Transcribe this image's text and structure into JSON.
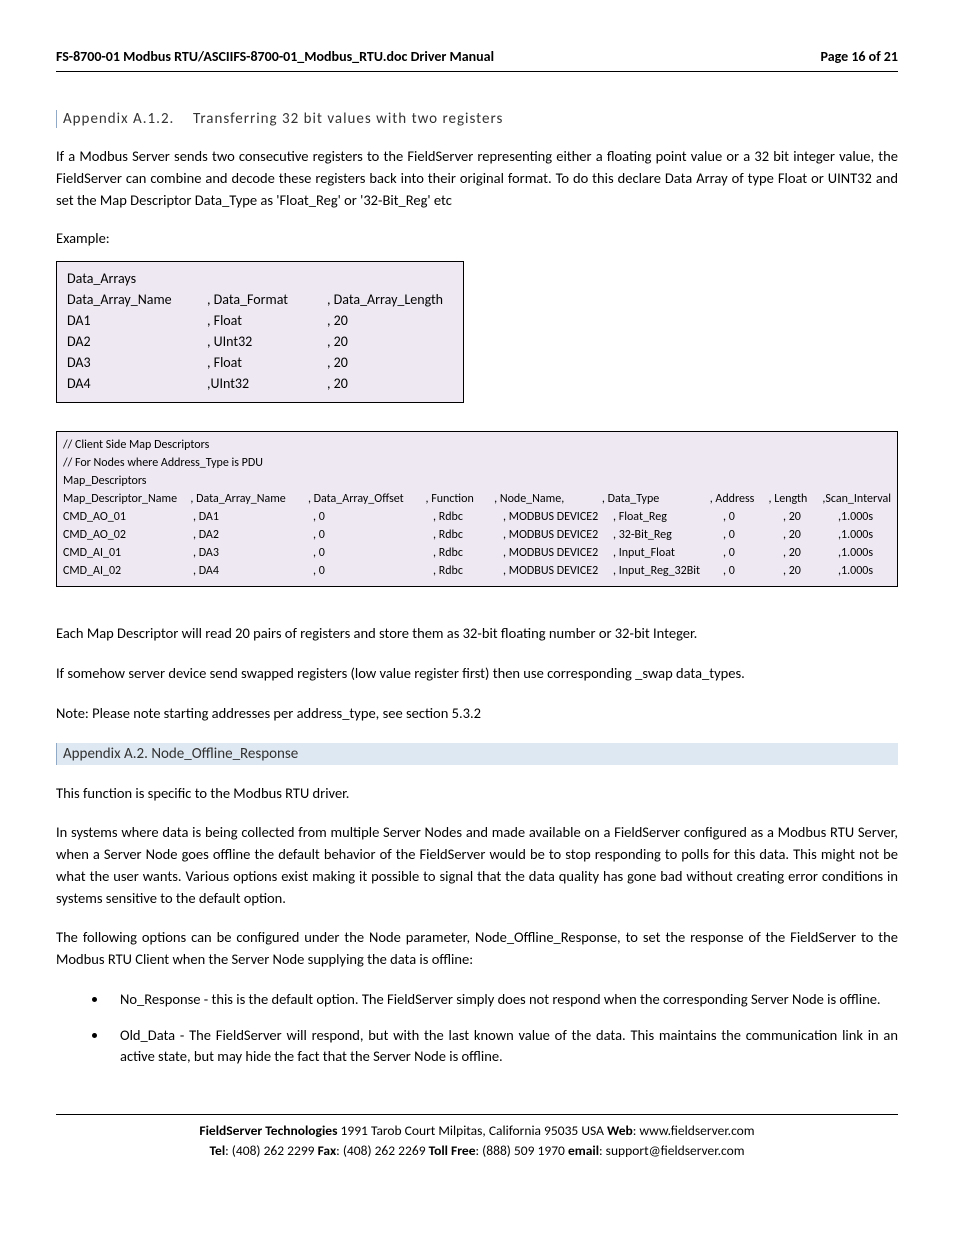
{
  "header": {
    "title": "FS-8700-01 Modbus RTU/ASCIIFS-8700-01_Modbus_RTU.doc Driver Manual",
    "page": "Page 16 of 21"
  },
  "sectA12": {
    "num": "Appendix A.1.2.",
    "title": "Transferring 32 bit values with two registers"
  },
  "para1": "If a Modbus Server sends two consecutive registers to the FieldServer representing either a floating point value or a 32 bit integer value, the FieldServer can combine and decode these registers back into their original format. To do this declare Data Array of type Float or UINT32 and set the Map Descriptor Data_Type  as 'Float_Reg' or '32-Bit_Reg' etc",
  "exampleLabel": "Example:",
  "dataArrays": {
    "title": "Data_Arrays",
    "headers": [
      "Data_Array_Name",
      ", Data_Format",
      ", Data_Array_Length"
    ],
    "rows": [
      [
        "DA1",
        ", Float",
        ", 20"
      ],
      [
        "DA2",
        ", UInt32",
        ", 20"
      ],
      [
        "DA3",
        ", Float",
        ", 20"
      ],
      [
        "DA4",
        ",UInt32",
        ", 20"
      ]
    ]
  },
  "mapBox": {
    "comment1": "//   Client Side Map Descriptors",
    "comment2": "// For Nodes where Address_Type is PDU",
    "title": "Map_Descriptors",
    "headers": [
      "Map_Descriptor_Name",
      ", Data_Array_Name",
      ", Data_Array_Offset",
      ", Function",
      ", Node_Name,",
      ", Data_Type",
      ", Address",
      ", Length",
      ",Scan_Interval"
    ],
    "rows": [
      [
        "CMD_AO_01",
        ", DA1",
        ", 0",
        ", Rdbc",
        ", MODBUS DEVICE2",
        ", Float_Reg",
        ", 0",
        ", 20",
        ",1.000s"
      ],
      [
        "CMD_AO_02",
        ", DA2",
        ", 0",
        ", Rdbc",
        ", MODBUS DEVICE2",
        ", 32-Bit_Reg",
        ", 0",
        ", 20",
        ",1.000s"
      ],
      [
        "CMD_AI_01",
        ", DA3",
        ", 0",
        ", Rdbc",
        ", MODBUS DEVICE2",
        ", Input_Float",
        ", 0",
        ", 20",
        ",1.000s"
      ],
      [
        "CMD_AI_02",
        ", DA4",
        ", 0",
        ", Rdbc",
        ", MODBUS DEVICE2",
        ", Input_Reg_32Bit",
        ", 0",
        ", 20",
        ",1.000s"
      ]
    ]
  },
  "para2": "Each Map Descriptor will read 20 pairs of registers and store them as 32-bit floating number or 32-bit Integer.",
  "para3": "If somehow server device send swapped registers (low value register first) then use corresponding _swap data_types.",
  "para4": "Note:  Please note starting addresses per address_type, see section 5.3.2",
  "sectA2": {
    "title": "Appendix A.2. Node_Offline_Response"
  },
  "para5": "This function is specific to the Modbus RTU driver.",
  "para6": "In systems where data is being collected from multiple Server Nodes and made available on a FieldServer configured as a Modbus RTU Server, when a Server Node goes offline the default behavior of the FieldServer would be to stop responding to polls for this data.  This might not be what the user wants.  Various options exist making it possible to signal that the data quality has gone bad without creating error conditions in systems sensitive to the default option.",
  "para7": "The following options can be configured under the Node parameter, Node_Offline_Response, to set the response of the FieldServer to the Modbus RTU Client when the Server Node supplying the data is offline:",
  "bullets": [
    "No_Response - this is the default option. The FieldServer simply does not respond when the corresponding Server Node is offline.",
    "Old_Data - The FieldServer will respond, but with the last known value of the data. This maintains the communication link in an active state, but may hide the fact that the Server Node is offline."
  ],
  "footer": {
    "l1a": "FieldServer Technologies",
    "l1b": " 1991 Tarob Court Milpitas, California 95035 USA   ",
    "l1c": "Web",
    "l1d": ": www.fieldserver.com",
    "l2a": "Tel",
    "l2b": ": (408) 262 2299   ",
    "l2c": "Fax",
    "l2d": ": (408) 262 2269   ",
    "l2e": "Toll Free",
    "l2f": ": (888) 509 1970   ",
    "l2g": "email",
    "l2h": ": support@fieldserver.com"
  }
}
